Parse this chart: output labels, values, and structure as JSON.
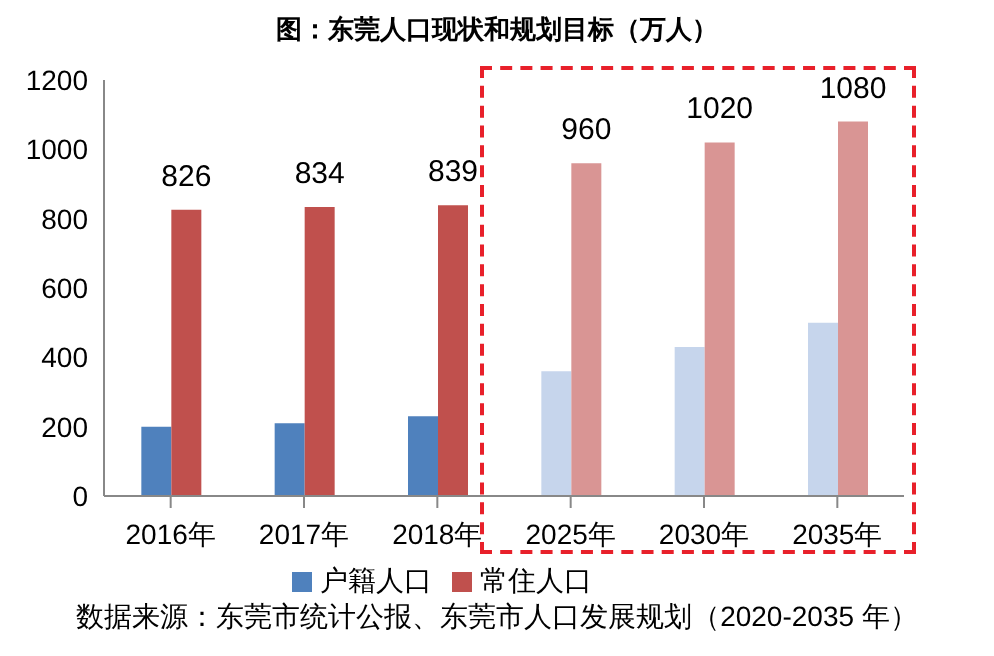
{
  "chart_data": {
    "type": "bar",
    "title": "图：东莞人口现状和规划目标（万人）",
    "categories": [
      "2016年",
      "2017年",
      "2018年",
      "2025年",
      "2030年",
      "2035年"
    ],
    "series": [
      {
        "name": "户籍人口",
        "color": "#4f81bd",
        "colors": [
          "#4f81bd",
          "#4f81bd",
          "#4f81bd",
          "#c6d5ec",
          "#c6d5ec",
          "#c6d5ec"
        ],
        "values": [
          200,
          210,
          230,
          360,
          430,
          500
        ]
      },
      {
        "name": "常住人口",
        "color": "#c0504d",
        "colors": [
          "#c0504d",
          "#c0504d",
          "#c0504d",
          "#d99594",
          "#d99594",
          "#d99594"
        ],
        "values": [
          826,
          834,
          839,
          960,
          1020,
          1080
        ],
        "value_labels": [
          "826",
          "834",
          "839",
          "960",
          "1020",
          "1080"
        ]
      }
    ],
    "ylim": [
      0,
      1200
    ],
    "yticks": [
      0,
      200,
      400,
      600,
      800,
      1000,
      1200
    ],
    "grid": false,
    "legend": "bottom",
    "annotations": [
      "数据来源：东莞市统计公报、东莞市人口发展规划（2020-2035 年）"
    ]
  }
}
